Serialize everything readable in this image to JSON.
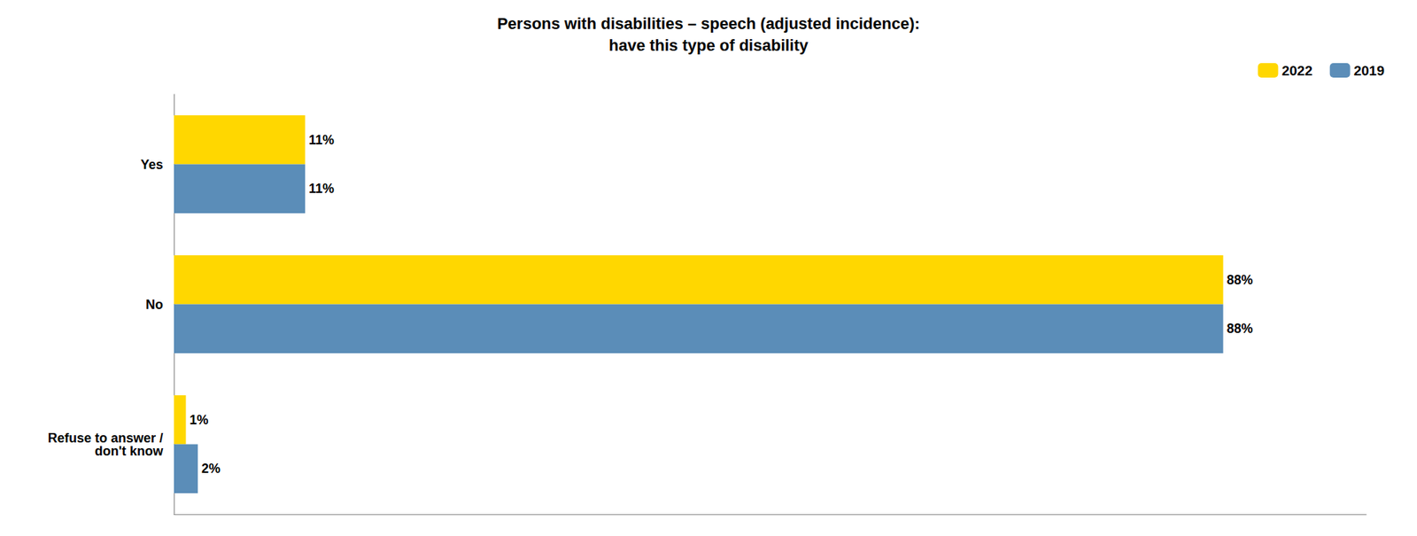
{
  "chart_data": {
    "type": "bar",
    "orientation": "horizontal",
    "title": "Persons with disabilities – speech (adjusted incidence):\nhave this type of disability",
    "categories": [
      "Yes",
      "No",
      "Refuse to answer /\ndon't know"
    ],
    "series": [
      {
        "name": "2022",
        "color": "#FFD700",
        "values": [
          11,
          88,
          1
        ],
        "value_labels": [
          "11%",
          "88%",
          "1%"
        ]
      },
      {
        "name": "2019",
        "color": "#5B8DB8",
        "values": [
          11,
          88,
          2
        ],
        "value_labels": [
          "11%",
          "88%",
          "2%"
        ]
      }
    ],
    "xlim": [
      0,
      100
    ],
    "xticks": [],
    "tick_labels": "y",
    "grid": false,
    "legend": "upper right",
    "data_labels": true
  }
}
